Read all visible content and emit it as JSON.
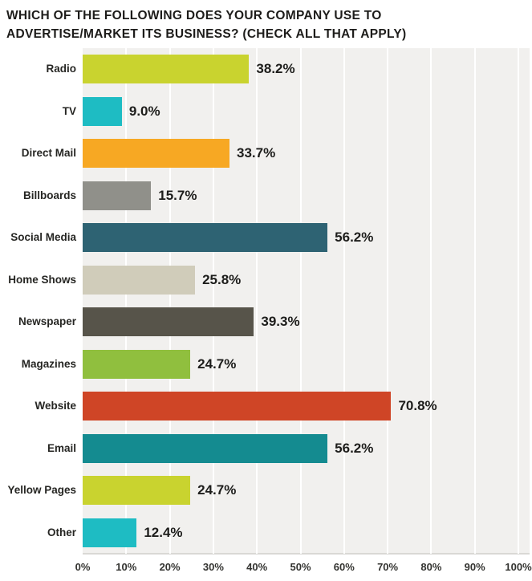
{
  "title_line1": "WHICH OF THE FOLLOWING DOES YOUR COMPANY USE TO",
  "title_line2": "ADVERTISE/MARKET ITS BUSINESS? (CHECK ALL THAT APPLY)",
  "chart_data": {
    "type": "bar",
    "orientation": "horizontal",
    "title": "WHICH OF THE FOLLOWING DOES YOUR COMPANY USE TO ADVERTISE/MARKET ITS BUSINESS? (CHECK ALL THAT APPLY)",
    "categories": [
      "Radio",
      "TV",
      "Direct Mail",
      "Billboards",
      "Social Media",
      "Home Shows",
      "Newspaper",
      "Magazines",
      "Website",
      "Email",
      "Yellow Pages",
      "Other"
    ],
    "values": [
      38.2,
      9.0,
      33.7,
      15.7,
      56.2,
      25.8,
      39.3,
      24.7,
      70.8,
      56.2,
      24.7,
      12.4
    ],
    "value_labels": [
      "38.2%",
      "9.0%",
      "33.7%",
      "15.7%",
      "56.2%",
      "25.8%",
      "39.3%",
      "24.7%",
      "70.8%",
      "56.2%",
      "24.7%",
      "12.4%"
    ],
    "bar_colors": [
      "#c9d32f",
      "#1ebcc3",
      "#f7a823",
      "#90908a",
      "#2e6373",
      "#d0ccba",
      "#57544a",
      "#90bf3e",
      "#cf4526",
      "#148b90",
      "#c9d32f",
      "#1ebcc3"
    ],
    "x_ticks": [
      "0%",
      "10%",
      "20%",
      "30%",
      "40%",
      "50%",
      "60%",
      "70%",
      "80%",
      "90%",
      "100%"
    ],
    "xlim": [
      0,
      102.5
    ],
    "grid": true,
    "legend": false,
    "colors": {
      "plot_background": "#f1f0ee",
      "gridline": "#ffffff",
      "axis_line": "#d9d8d5",
      "text": "#1d1d1b"
    }
  }
}
